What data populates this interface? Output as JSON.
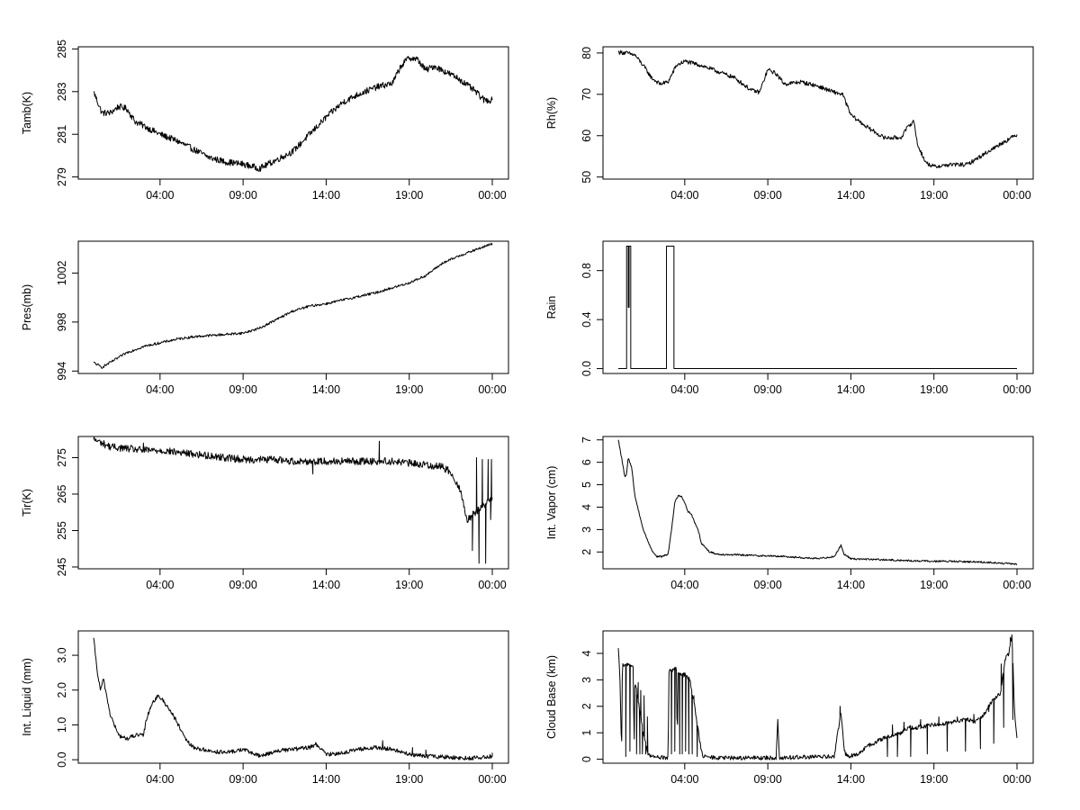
{
  "x_tick_labels": [
    "04:00",
    "09:00",
    "14:00",
    "19:00",
    "00:00"
  ],
  "colors": {
    "line": "#000000",
    "frame": "#000000",
    "background": "#ffffff"
  },
  "chart_data": [
    {
      "type": "line",
      "ylabel": "Tamb(K)",
      "ylim": [
        278.9,
        285.1
      ],
      "yticks": [
        279,
        281,
        283,
        285
      ],
      "ytick_labels": [
        "279",
        "281",
        "283",
        "285"
      ],
      "x": [
        0.0,
        0.5,
        1.0,
        1.5,
        2.0,
        2.5,
        3.0,
        4.0,
        5.0,
        6.0,
        7.0,
        8.0,
        9.0,
        10.0,
        11.0,
        12.0,
        13.0,
        14.0,
        15.0,
        16.0,
        17.0,
        18.0,
        18.5,
        19.0,
        19.5,
        20.0,
        20.5,
        21.0,
        22.0,
        23.0,
        23.5,
        24.0
      ],
      "y": [
        283.0,
        282.0,
        282.0,
        282.3,
        282.2,
        281.6,
        281.4,
        281.0,
        280.7,
        280.3,
        279.9,
        279.7,
        279.6,
        279.4,
        279.8,
        280.2,
        281.0,
        281.8,
        282.5,
        282.9,
        283.2,
        283.4,
        284.2,
        284.6,
        284.5,
        284.0,
        284.2,
        284.0,
        283.6,
        283.0,
        282.6,
        282.6
      ],
      "noise": 0.15
    },
    {
      "type": "line",
      "ylabel": "Rh(%)",
      "ylim": [
        49.5,
        81.5
      ],
      "yticks": [
        50,
        60,
        70,
        80
      ],
      "ytick_labels": [
        "50",
        "60",
        "70",
        "80"
      ],
      "x": [
        0.0,
        0.5,
        1.0,
        1.5,
        2.0,
        2.5,
        3.0,
        3.5,
        4.0,
        5.0,
        6.0,
        7.0,
        7.5,
        8.0,
        8.5,
        9.0,
        9.5,
        10.0,
        11.0,
        12.0,
        13.0,
        13.5,
        14.0,
        15.0,
        16.0,
        17.0,
        17.5,
        17.8,
        18.0,
        18.5,
        19.0,
        20.0,
        21.0,
        22.0,
        23.0,
        24.0
      ],
      "y": [
        80.2,
        80.0,
        79.5,
        77.0,
        74.0,
        72.5,
        73.0,
        77.0,
        78.0,
        77.0,
        75.5,
        74.0,
        72.5,
        71.0,
        70.5,
        76.0,
        75.0,
        72.5,
        73.0,
        72.0,
        70.5,
        70.0,
        65.0,
        62.0,
        59.5,
        59.5,
        62.5,
        63.5,
        58.0,
        53.5,
        52.5,
        53.0,
        53.0,
        55.5,
        58.0,
        60.3
      ],
      "noise": 0.5
    },
    {
      "type": "line",
      "ylabel": "Pres(mb)",
      "ylim": [
        993.8,
        1004.6
      ],
      "yticks": [
        994,
        998,
        1002
      ],
      "ytick_labels": [
        "994",
        "998",
        "1002"
      ],
      "x": [
        0.0,
        0.5,
        1.0,
        2.0,
        3.0,
        4.0,
        5.0,
        6.0,
        7.0,
        8.0,
        9.0,
        10.0,
        11.0,
        12.0,
        13.0,
        14.0,
        15.0,
        16.0,
        17.0,
        18.0,
        19.0,
        20.0,
        21.0,
        22.0,
        23.0,
        24.0
      ],
      "y": [
        994.7,
        994.3,
        994.7,
        995.5,
        996.0,
        996.3,
        996.6,
        996.8,
        996.9,
        997.0,
        997.1,
        997.5,
        998.2,
        998.9,
        999.3,
        999.5,
        999.8,
        1000.1,
        1000.4,
        1000.8,
        1001.2,
        1001.8,
        1002.8,
        1003.4,
        1003.9,
        1004.4
      ],
      "noise": 0.1
    },
    {
      "type": "step",
      "ylabel": "Rain",
      "ylim": [
        -0.04,
        1.04
      ],
      "yticks": [
        0.0,
        0.4,
        0.8
      ],
      "ytick_labels": [
        "0.0",
        "0.4",
        "0.8"
      ],
      "x": [
        0.0,
        0.5,
        0.5,
        0.6,
        0.6,
        0.65,
        0.65,
        0.75,
        0.75,
        2.9,
        2.9,
        3.35,
        3.35,
        24.0
      ],
      "y": [
        0.0,
        0.0,
        1.0,
        1.0,
        0.5,
        0.5,
        1.0,
        1.0,
        0.0,
        0.0,
        1.0,
        1.0,
        0.0,
        0.0
      ],
      "noise": 0.0
    },
    {
      "type": "line",
      "ylabel": "Tir(K)",
      "ylim": [
        244.5,
        280.8
      ],
      "yticks": [
        245,
        255,
        265,
        275
      ],
      "ytick_labels": [
        "245",
        "255",
        "265",
        "275"
      ],
      "x": [
        0.0,
        0.5,
        1.0,
        2.0,
        3.0,
        4.0,
        5.0,
        6.0,
        7.0,
        8.0,
        9.0,
        10.0,
        11.0,
        12.0,
        13.0,
        14.0,
        15.0,
        16.0,
        17.0,
        18.0,
        19.0,
        20.0,
        21.0,
        21.5,
        22.0,
        22.5,
        23.0,
        23.5,
        24.0
      ],
      "y": [
        280.0,
        279.0,
        278.0,
        277.5,
        277.0,
        277.0,
        276.5,
        276.0,
        275.5,
        275.0,
        274.5,
        274.5,
        274.5,
        274.0,
        274.0,
        274.0,
        274.0,
        274.0,
        274.0,
        274.0,
        273.5,
        273.0,
        272.5,
        271.0,
        267.0,
        258.0,
        260.0,
        262.0,
        264.0
      ],
      "noise": 1.0,
      "spikes": [
        [
          3.0,
          279.0
        ],
        [
          13.2,
          270.5
        ],
        [
          17.2,
          279.5
        ],
        [
          22.8,
          249.5
        ],
        [
          23.05,
          275.0
        ],
        [
          23.2,
          246.0
        ],
        [
          23.4,
          274.5
        ],
        [
          23.6,
          246.0
        ],
        [
          23.75,
          274.5
        ],
        [
          23.9,
          258.0
        ],
        [
          23.95,
          274.5
        ]
      ]
    },
    {
      "type": "line",
      "ylabel": "Int. Vapor (cm)",
      "ylim": [
        1.25,
        7.15
      ],
      "yticks": [
        2,
        3,
        4,
        5,
        6,
        7
      ],
      "ytick_labels": [
        "2",
        "3",
        "4",
        "5",
        "6",
        "7"
      ],
      "x": [
        0.0,
        0.2,
        0.4,
        0.5,
        0.6,
        0.8,
        1.0,
        1.5,
        2.0,
        2.3,
        2.6,
        3.0,
        3.2,
        3.4,
        3.6,
        3.8,
        4.0,
        4.2,
        4.4,
        4.6,
        4.8,
        5.0,
        5.5,
        6.0,
        8.0,
        10.0,
        12.0,
        13.0,
        13.4,
        13.6,
        14.0,
        16.0,
        18.0,
        20.0,
        22.0,
        24.0
      ],
      "y": [
        7.0,
        6.2,
        5.3,
        5.5,
        6.2,
        5.8,
        4.5,
        3.0,
        2.1,
        1.8,
        1.8,
        1.9,
        3.0,
        4.2,
        4.5,
        4.5,
        4.2,
        3.8,
        3.7,
        3.3,
        3.0,
        2.4,
        2.0,
        1.9,
        1.85,
        1.8,
        1.7,
        1.8,
        2.3,
        1.9,
        1.7,
        1.65,
        1.6,
        1.58,
        1.55,
        1.45
      ],
      "noise": 0.04
    },
    {
      "type": "line",
      "ylabel": "Int. Liquid (mm)",
      "ylim": [
        -0.1,
        3.7
      ],
      "yticks": [
        0.0,
        1.0,
        2.0,
        3.0
      ],
      "ytick_labels": [
        "0.0",
        "1.0",
        "2.0",
        "3.0"
      ],
      "x": [
        0.0,
        0.2,
        0.4,
        0.6,
        0.8,
        1.0,
        1.5,
        2.0,
        2.5,
        3.0,
        3.2,
        3.5,
        3.8,
        4.0,
        4.5,
        5.0,
        5.5,
        6.0,
        7.0,
        8.0,
        9.0,
        10.0,
        11.0,
        12.0,
        13.0,
        13.4,
        14.0,
        15.0,
        16.0,
        17.0,
        18.0,
        19.0,
        20.0,
        21.0,
        22.0,
        23.0,
        24.0
      ],
      "y": [
        3.5,
        2.6,
        2.0,
        2.3,
        1.8,
        1.3,
        0.7,
        0.6,
        0.7,
        0.7,
        1.2,
        1.6,
        1.8,
        1.8,
        1.5,
        1.1,
        0.6,
        0.35,
        0.25,
        0.2,
        0.3,
        0.1,
        0.25,
        0.3,
        0.35,
        0.45,
        0.15,
        0.2,
        0.3,
        0.35,
        0.3,
        0.15,
        0.1,
        0.08,
        0.05,
        0.05,
        0.1
      ],
      "noise": 0.06,
      "spikes": [
        [
          17.4,
          0.55
        ],
        [
          19.2,
          0.35
        ],
        [
          20.0,
          0.28
        ],
        [
          24.0,
          0.2
        ]
      ]
    },
    {
      "type": "line",
      "ylabel": "Cloud Base (km)",
      "ylim": [
        -0.15,
        4.85
      ],
      "yticks": [
        0,
        1,
        2,
        3,
        4
      ],
      "ytick_labels": [
        "0",
        "1",
        "2",
        "3",
        "4"
      ],
      "x": [
        0.0,
        0.1,
        0.2,
        0.25,
        0.3,
        0.6,
        0.9,
        0.95,
        1.0,
        1.5,
        1.8,
        2.0,
        3.0,
        3.05,
        3.1,
        3.5,
        3.55,
        3.6,
        4.0,
        4.3,
        4.6,
        5.0,
        5.1,
        6.0,
        8.0,
        9.5,
        9.6,
        9.7,
        11.0,
        13.0,
        13.4,
        13.6,
        13.8,
        14.5,
        15.0,
        16.0,
        17.0,
        17.5,
        18.0,
        19.0,
        20.0,
        21.0,
        21.5,
        22.0,
        22.5,
        23.0,
        23.3,
        23.5,
        23.7,
        23.85,
        24.0
      ],
      "y": [
        4.2,
        3.0,
        0.2,
        3.8,
        3.5,
        3.6,
        3.5,
        0.3,
        3.0,
        1.0,
        0.2,
        0.1,
        0.05,
        3.2,
        3.4,
        3.4,
        0.5,
        3.2,
        3.2,
        3.0,
        2.0,
        0.3,
        0.1,
        0.05,
        0.05,
        0.05,
        1.5,
        0.05,
        0.08,
        0.1,
        1.8,
        0.3,
        0.1,
        0.2,
        0.5,
        0.8,
        1.0,
        1.2,
        1.2,
        1.3,
        1.4,
        1.5,
        1.4,
        1.7,
        2.2,
        2.5,
        3.8,
        4.0,
        4.7,
        1.8,
        0.8
      ],
      "noise": 0.08,
      "spikes": [
        [
          0.45,
          0.1
        ],
        [
          0.5,
          3.6
        ],
        [
          0.7,
          0.3
        ],
        [
          0.75,
          3.5
        ],
        [
          1.1,
          0.2
        ],
        [
          1.2,
          2.9
        ],
        [
          1.3,
          0.2
        ],
        [
          1.35,
          2.6
        ],
        [
          1.45,
          0.2
        ],
        [
          1.55,
          2.4
        ],
        [
          1.65,
          0.2
        ],
        [
          1.75,
          1.6
        ],
        [
          3.2,
          0.2
        ],
        [
          3.25,
          3.3
        ],
        [
          3.4,
          0.3
        ],
        [
          3.7,
          0.2
        ],
        [
          3.75,
          3.2
        ],
        [
          3.85,
          0.2
        ],
        [
          3.9,
          3.1
        ],
        [
          4.05,
          0.3
        ],
        [
          4.15,
          3.1
        ],
        [
          4.25,
          0.2
        ],
        [
          4.35,
          2.9
        ],
        [
          4.45,
          0.2
        ],
        [
          4.55,
          2.4
        ],
        [
          4.75,
          0.1
        ],
        [
          13.35,
          2.0
        ],
        [
          16.2,
          0.1
        ],
        [
          16.5,
          1.3
        ],
        [
          16.8,
          0.1
        ],
        [
          17.2,
          1.4
        ],
        [
          17.6,
          0.1
        ],
        [
          18.2,
          1.5
        ],
        [
          18.6,
          0.2
        ],
        [
          19.3,
          1.6
        ],
        [
          19.8,
          0.3
        ],
        [
          20.4,
          1.6
        ],
        [
          20.9,
          0.3
        ],
        [
          21.4,
          1.7
        ],
        [
          21.8,
          0.4
        ],
        [
          22.3,
          1.8
        ],
        [
          22.6,
          0.6
        ],
        [
          23.05,
          3.6
        ],
        [
          23.2,
          1.2
        ],
        [
          23.6,
          4.6
        ],
        [
          23.75,
          1.5
        ]
      ]
    }
  ]
}
